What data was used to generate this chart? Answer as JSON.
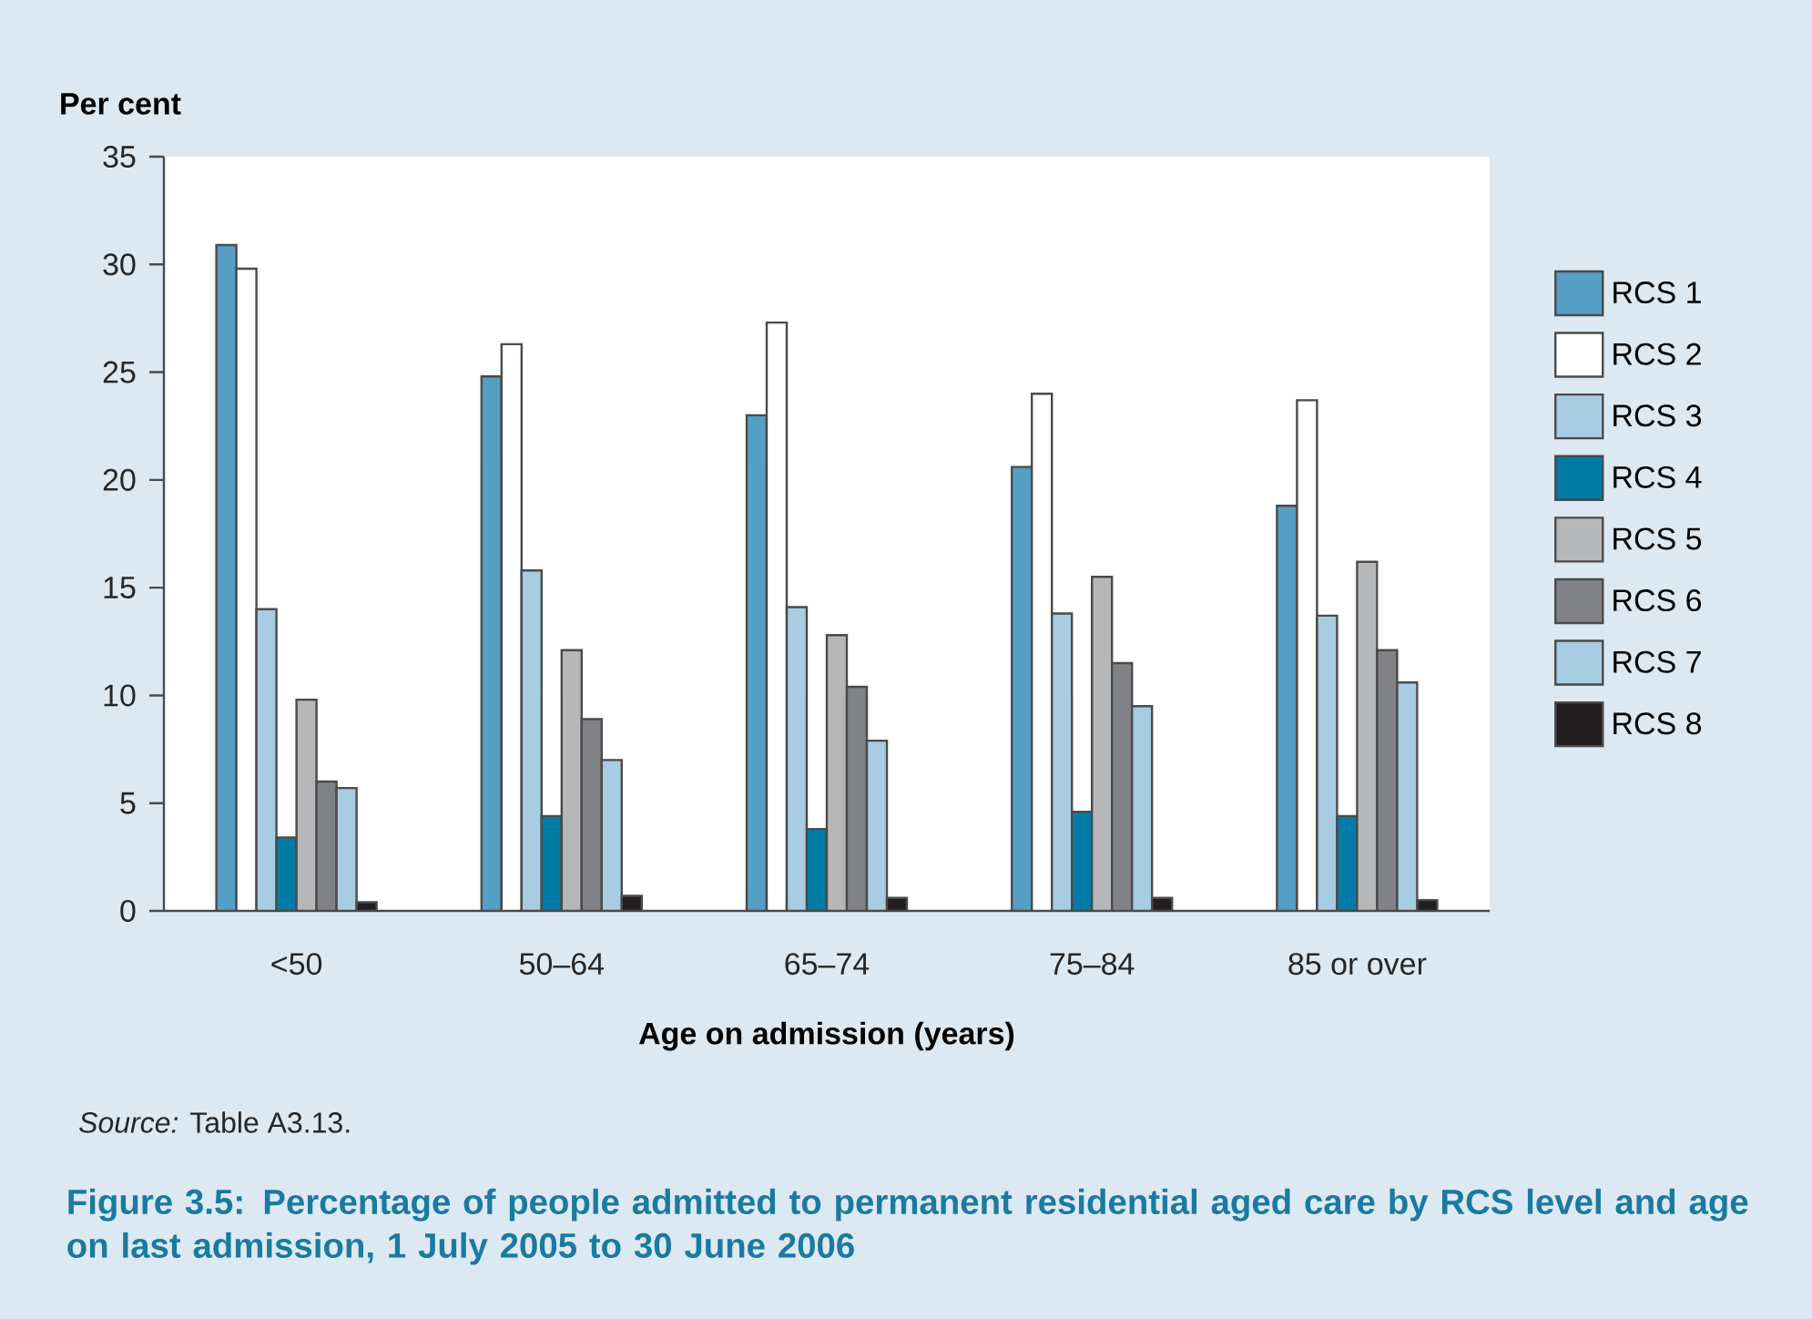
{
  "chart_data": {
    "type": "bar",
    "title": "Figure 3.5: Percentage of people admitted to permanent residential aged care by RCS level and age on last admission, 1 July 2005 to 30 June 2006",
    "xlabel": "Age on admission (years)",
    "ylabel": "Per cent",
    "annotations": [
      "*Source:* Table A3.13."
    ],
    "categories": [
      "<50",
      "50–64",
      "65–74",
      "75–84",
      "85 or over"
    ],
    "series": [
      {
        "name": "RCS 1",
        "color": "#559fc4",
        "values": [
          30.9,
          24.8,
          23.0,
          20.6,
          18.8
        ]
      },
      {
        "name": "RCS 2",
        "color": "#ffffff",
        "values": [
          29.8,
          26.3,
          27.3,
          24.0,
          23.7
        ]
      },
      {
        "name": "RCS 3",
        "color": "#a8cce2",
        "values": [
          14.0,
          15.8,
          14.1,
          13.8,
          13.7
        ]
      },
      {
        "name": "RCS 4",
        "color": "#007ca6",
        "values": [
          3.4,
          4.4,
          3.8,
          4.6,
          4.4
        ]
      },
      {
        "name": "RCS 5",
        "color": "#b6b7b9",
        "values": [
          9.8,
          12.1,
          12.8,
          15.5,
          16.2
        ]
      },
      {
        "name": "RCS 6",
        "color": "#808285",
        "values": [
          6.0,
          8.9,
          10.4,
          11.5,
          12.1
        ]
      },
      {
        "name": "RCS 7",
        "color": "#a8cce2",
        "values": [
          5.7,
          7.0,
          7.9,
          9.5,
          10.6
        ]
      },
      {
        "name": "RCS 8",
        "color": "#231f20",
        "values": [
          0.4,
          0.7,
          0.6,
          0.6,
          0.5
        ]
      }
    ],
    "ylim": [
      0,
      35
    ],
    "yticks": [
      0,
      5,
      10,
      15,
      20,
      25,
      30,
      35
    ],
    "grid": false,
    "legend": "right"
  }
}
